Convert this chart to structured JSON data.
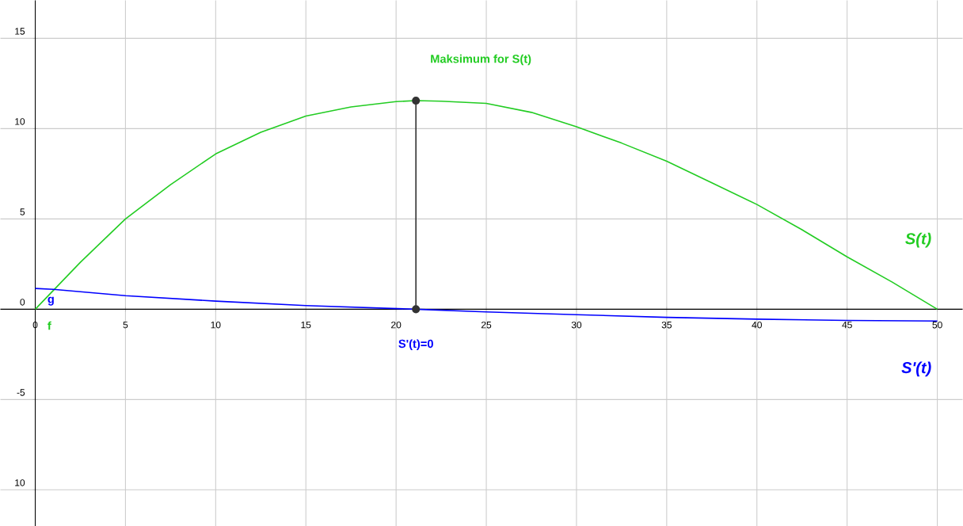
{
  "chart_data": {
    "type": "line",
    "series": [
      {
        "name": "S(t)",
        "color": "#22cc22",
        "x": [
          0,
          2.5,
          5,
          7.5,
          10,
          12.5,
          15,
          17.5,
          20,
          21.1,
          22.5,
          25,
          27.5,
          30,
          32.5,
          35,
          37.5,
          40,
          42.5,
          45,
          47.5,
          50
        ],
        "values": [
          0,
          2.6,
          5.0,
          6.9,
          8.6,
          9.8,
          10.7,
          11.2,
          11.5,
          11.55,
          11.52,
          11.4,
          10.9,
          10.1,
          9.2,
          8.2,
          7.0,
          5.8,
          4.4,
          2.9,
          1.5,
          0
        ]
      },
      {
        "name": "S'(t)",
        "color": "#0000ff",
        "x": [
          0,
          1,
          5,
          10,
          15,
          21.1,
          25,
          30,
          35,
          40,
          45,
          50
        ],
        "values": [
          1.15,
          1.1,
          0.75,
          0.45,
          0.2,
          0,
          -0.15,
          -0.3,
          -0.45,
          -0.55,
          -0.62,
          -0.65
        ]
      },
      {
        "color": "#333333",
        "marker": "circle",
        "x": [
          21.1,
          21.1
        ],
        "values": [
          0,
          11.55
        ]
      }
    ],
    "annotations": [
      "Maksimum for S(t)",
      "S'(t)=0",
      "g",
      "f"
    ],
    "xlim": [
      -1.93,
      51.4
    ],
    "ylim": [
      -12.0,
      17.1
    ],
    "xticks": [
      0,
      5,
      10,
      15,
      20,
      25,
      30,
      35,
      40,
      45,
      50
    ],
    "yticks": [
      {
        "value": -10,
        "label": "10"
      },
      -5,
      0,
      5,
      10,
      15
    ],
    "grid": true,
    "marker": "none"
  }
}
